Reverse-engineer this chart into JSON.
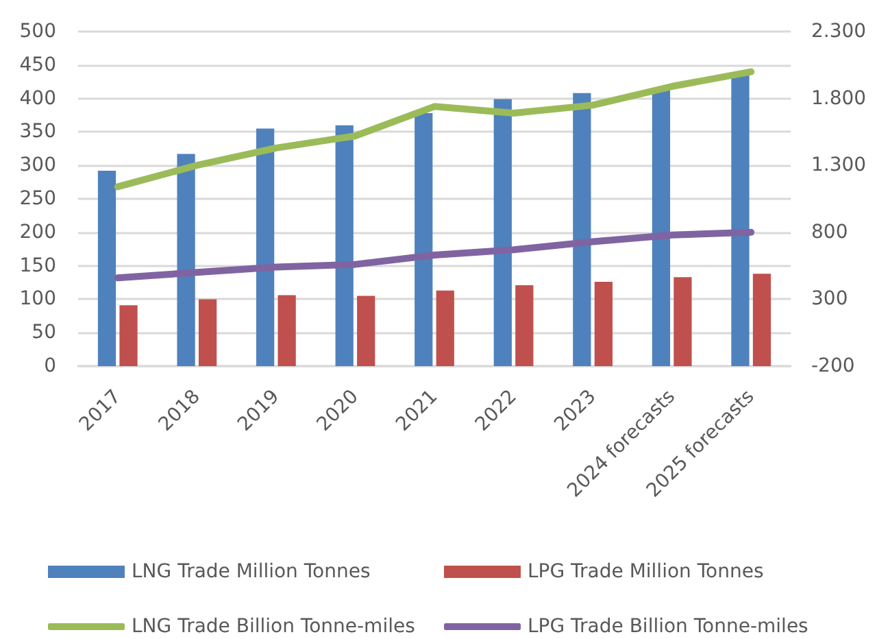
{
  "chart_data": {
    "type": "bar",
    "categories": [
      "2017",
      "2018",
      "2019",
      "2020",
      "2021",
      "2022",
      "2023",
      "2024 forecasts",
      "2025 forecasts"
    ],
    "series": [
      {
        "name": "LNG Trade Million Tonnes",
        "color": "#4f81bd",
        "values": [
          292,
          317,
          355,
          360,
          378,
          399,
          408,
          415,
          438
        ]
      },
      {
        "name": "LPG Trade Million Tonnes",
        "color": "#c0504d",
        "values": [
          91,
          100,
          106,
          105,
          113,
          121,
          126,
          133,
          138
        ]
      },
      {
        "name": "LNG Trade Billion Tonne-miles",
        "type": "line",
        "axis": "y2",
        "color": "#9bbb59",
        "values": [
          1140,
          1300,
          1430,
          1520,
          1740,
          1690,
          1750,
          1890,
          2000
        ]
      },
      {
        "name": "LPG Trade Billion Tonne-miles",
        "type": "line",
        "axis": "y2",
        "color": "#8064a2",
        "values": [
          460,
          500,
          540,
          560,
          630,
          670,
          730,
          780,
          800
        ]
      }
    ],
    "ylim": [
      0,
      500
    ],
    "yticks": [
      0,
      50,
      100,
      150,
      200,
      250,
      300,
      350,
      400,
      450,
      500
    ],
    "y2lim": [
      -200,
      2300
    ],
    "y2ticks": [
      -200,
      300,
      800,
      {
        "value": 1300,
        "label": "1.300"
      },
      {
        "value": 1800,
        "label": "1.800"
      },
      {
        "value": 2300,
        "label": "2.300"
      }
    ],
    "grid": "y",
    "legend": "bottom",
    "marker": "none"
  }
}
